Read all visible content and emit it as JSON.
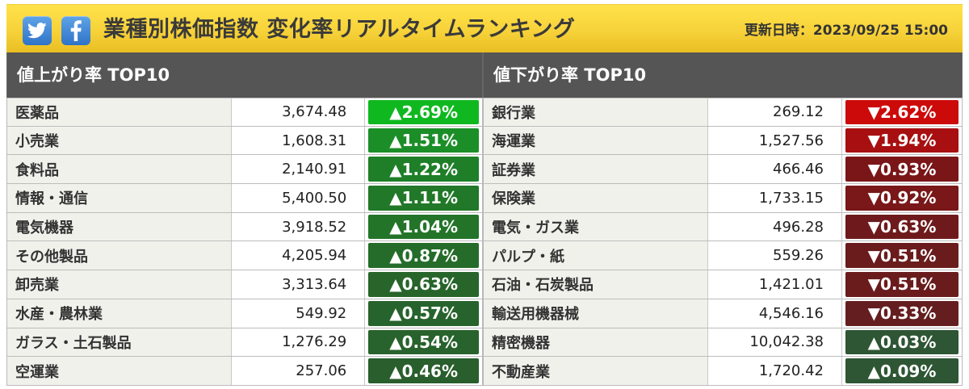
{
  "header": {
    "title": "業種別株価指数 変化率リアルタイムランキング",
    "updated": "更新日時：2023/09/25 15:00",
    "icons": [
      "twitter-icon",
      "facebook-icon"
    ]
  },
  "colors": {
    "up_strong": "#16b316",
    "up_mid": "#1f8e25",
    "up_dark": "#2c6e2e",
    "up_darker": "#2f5531",
    "down_strong": "#cc0000",
    "down_mid": "#a50f0f",
    "down_dark": "#7a1a1a",
    "down_darker": "#6a1d1d"
  },
  "left": {
    "title": "値上がり率 TOP10",
    "rows": [
      {
        "name": "医薬品",
        "value": "3,674.48",
        "change": "▲2.69%",
        "color": "#10b820"
      },
      {
        "name": "小売業",
        "value": "1,608.31",
        "change": "▲1.51%",
        "color": "#1b8e28"
      },
      {
        "name": "食料品",
        "value": "2,140.91",
        "change": "▲1.22%",
        "color": "#1e7f28"
      },
      {
        "name": "情報・通信",
        "value": "5,400.50",
        "change": "▲1.11%",
        "color": "#217828"
      },
      {
        "name": "電気機器",
        "value": "3,918.52",
        "change": "▲1.04%",
        "color": "#237429"
      },
      {
        "name": "その他製品",
        "value": "4,205.94",
        "change": "▲0.87%",
        "color": "#256c2a"
      },
      {
        "name": "卸売業",
        "value": "3,313.64",
        "change": "▲0.63%",
        "color": "#27652b"
      },
      {
        "name": "水産・農林業",
        "value": "549.92",
        "change": "▲0.57%",
        "color": "#27632c"
      },
      {
        "name": "ガラス・土石製品",
        "value": "1,276.29",
        "change": "▲0.54%",
        "color": "#28622c"
      },
      {
        "name": "空運業",
        "value": "257.06",
        "change": "▲0.46%",
        "color": "#295e2d"
      }
    ]
  },
  "right": {
    "title": "値下がり率 TOP10",
    "rows": [
      {
        "name": "銀行業",
        "value": "269.12",
        "change": "▼2.62%",
        "color": "#cc0a0a"
      },
      {
        "name": "海運業",
        "value": "1,527.56",
        "change": "▼1.94%",
        "color": "#a80f10"
      },
      {
        "name": "証券業",
        "value": "466.46",
        "change": "▼0.93%",
        "color": "#7a1618"
      },
      {
        "name": "保険業",
        "value": "1,733.15",
        "change": "▼0.92%",
        "color": "#791719"
      },
      {
        "name": "電気・ガス業",
        "value": "496.28",
        "change": "▼0.63%",
        "color": "#6e1a1c"
      },
      {
        "name": "パルプ・紙",
        "value": "559.26",
        "change": "▼0.51%",
        "color": "#6a1c1d"
      },
      {
        "name": "石油・石炭製品",
        "value": "1,421.01",
        "change": "▼0.51%",
        "color": "#6a1c1d"
      },
      {
        "name": "輸送用機器械",
        "value": "4,546.16",
        "change": "▼0.33%",
        "color": "#651e1f"
      },
      {
        "name": "精密機器",
        "value": "10,042.38",
        "change": "▲0.03%",
        "color": "#2e5534"
      },
      {
        "name": "不動産業",
        "value": "1,720.42",
        "change": "▲0.09%",
        "color": "#2e5634"
      }
    ]
  }
}
